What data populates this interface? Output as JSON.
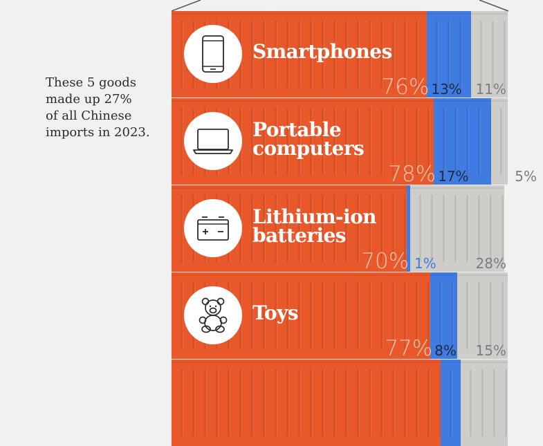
{
  "annotation": "These 5 goods\nmade up 27%\nof all Chinese\nimports in 2023.",
  "colors": {
    "china": "#e9582a",
    "united_states": "#3f7be0",
    "other": "#cfcdc9",
    "china_label": "#f6c6b6",
    "us_label_dark": "#1f2a44",
    "us_label_light": "#3f7be0",
    "other_label": "#7d7d7d"
  },
  "chart_data": {
    "type": "bar",
    "orientation": "horizontal",
    "stacked": true,
    "normalized": true,
    "xlim": [
      0,
      100
    ],
    "unit": "%",
    "categories": [
      "Smartphones",
      "Portable computers",
      "Lithium-ion batteries",
      "Toys",
      ""
    ],
    "icons": [
      "smartphone-icon",
      "laptop-icon",
      "battery-icon",
      "teddy-bear-icon",
      ""
    ],
    "series": [
      {
        "values": [
          76,
          78,
          70,
          77,
          80
        ],
        "labels": [
          "76%",
          "78%",
          "70%",
          "77%",
          ""
        ]
      },
      {
        "values": [
          13,
          17,
          1,
          8,
          6
        ],
        "labels": [
          "13%",
          "17%",
          "1%",
          "8%",
          ""
        ]
      },
      {
        "values": [
          11,
          5,
          28,
          15,
          14
        ],
        "labels": [
          "11%",
          "5%",
          "28%",
          "15%",
          ""
        ]
      }
    ]
  }
}
